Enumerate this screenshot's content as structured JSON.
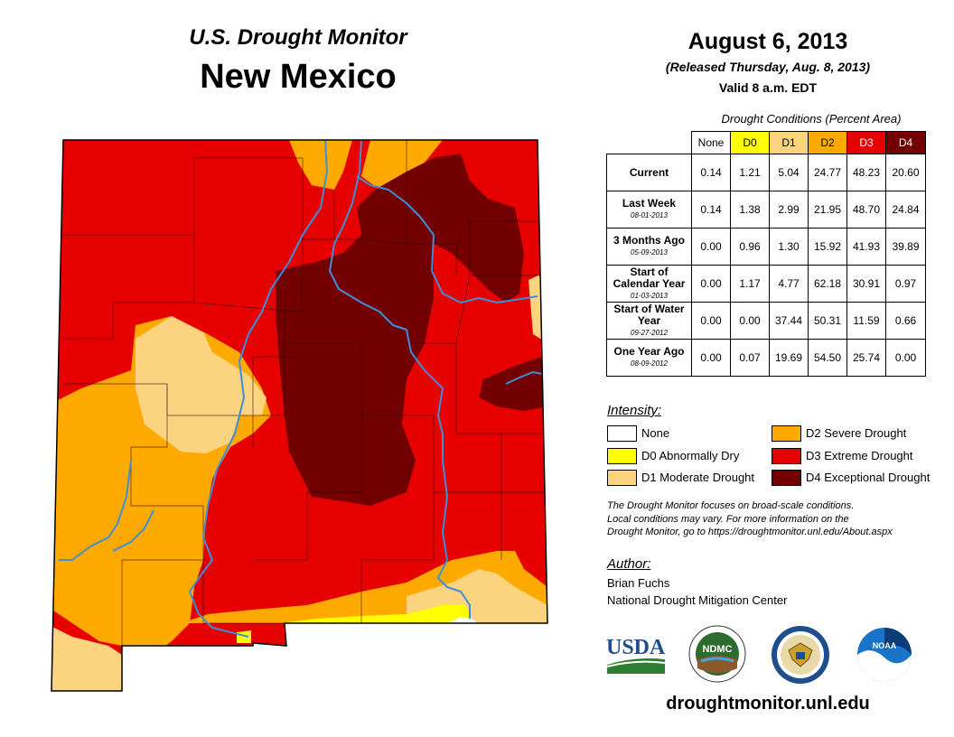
{
  "header": {
    "subtitle": "U.S. Drought Monitor",
    "title": "New Mexico",
    "date": "August 6, 2013",
    "released": "(Released Thursday, Aug. 8, 2013)",
    "valid": "Valid 8 a.m. EDT"
  },
  "table": {
    "caption": "Drought Conditions (Percent Area)",
    "columns": [
      "None",
      "D0",
      "D1",
      "D2",
      "D3",
      "D4"
    ],
    "rows": [
      {
        "label": "Current",
        "date": "",
        "values": [
          "0.14",
          "1.21",
          "5.04",
          "24.77",
          "48.23",
          "20.60"
        ]
      },
      {
        "label": "Last Week",
        "date": "08-01-2013",
        "values": [
          "0.14",
          "1.38",
          "2.99",
          "21.95",
          "48.70",
          "24.84"
        ]
      },
      {
        "label": "3 Months Ago",
        "date": "05-09-2013",
        "values": [
          "0.00",
          "0.96",
          "1.30",
          "15.92",
          "41.93",
          "39.89"
        ]
      },
      {
        "label": "Start of Calendar Year",
        "date": "01-03-2013",
        "values": [
          "0.00",
          "1.17",
          "4.77",
          "62.18",
          "30.91",
          "0.97"
        ]
      },
      {
        "label": "Start of Water Year",
        "date": "09-27-2012",
        "values": [
          "0.00",
          "0.00",
          "37.44",
          "50.31",
          "11.59",
          "0.66"
        ]
      },
      {
        "label": "One Year Ago",
        "date": "08-09-2012",
        "values": [
          "0.00",
          "0.07",
          "19.69",
          "54.50",
          "25.74",
          "0.00"
        ]
      }
    ]
  },
  "legend": {
    "heading": "Intensity:",
    "items": [
      {
        "label": "None",
        "color": "#ffffff"
      },
      {
        "label": "D0 Abnormally Dry",
        "color": "#ffff00"
      },
      {
        "label": "D1 Moderate Drought",
        "color": "#fcd37f"
      },
      {
        "label": "D2 Severe Drought",
        "color": "#ffaa00"
      },
      {
        "label": "D3 Extreme Drought",
        "color": "#e60000"
      },
      {
        "label": "D4 Exceptional Drought",
        "color": "#730000"
      }
    ]
  },
  "note": {
    "line1": "The Drought Monitor focuses on broad-scale conditions.",
    "line2": "Local conditions may vary. For more information on the",
    "line3": "Drought Monitor, go to https://droughtmonitor.unl.edu/About.aspx"
  },
  "author": {
    "heading": "Author:",
    "name": "Brian Fuchs",
    "org": "National Drought Mitigation Center"
  },
  "logos": {
    "usda": "USDA",
    "ndmc": "NDMC",
    "noaa": "NOAA"
  },
  "colors": {
    "none": "#ffffff",
    "d0": "#ffff00",
    "d1": "#fcd37f",
    "d2": "#ffaa00",
    "d3": "#e60000",
    "d4": "#730000",
    "river": "#3d8fd8"
  },
  "website": "droughtmonitor.unl.edu"
}
